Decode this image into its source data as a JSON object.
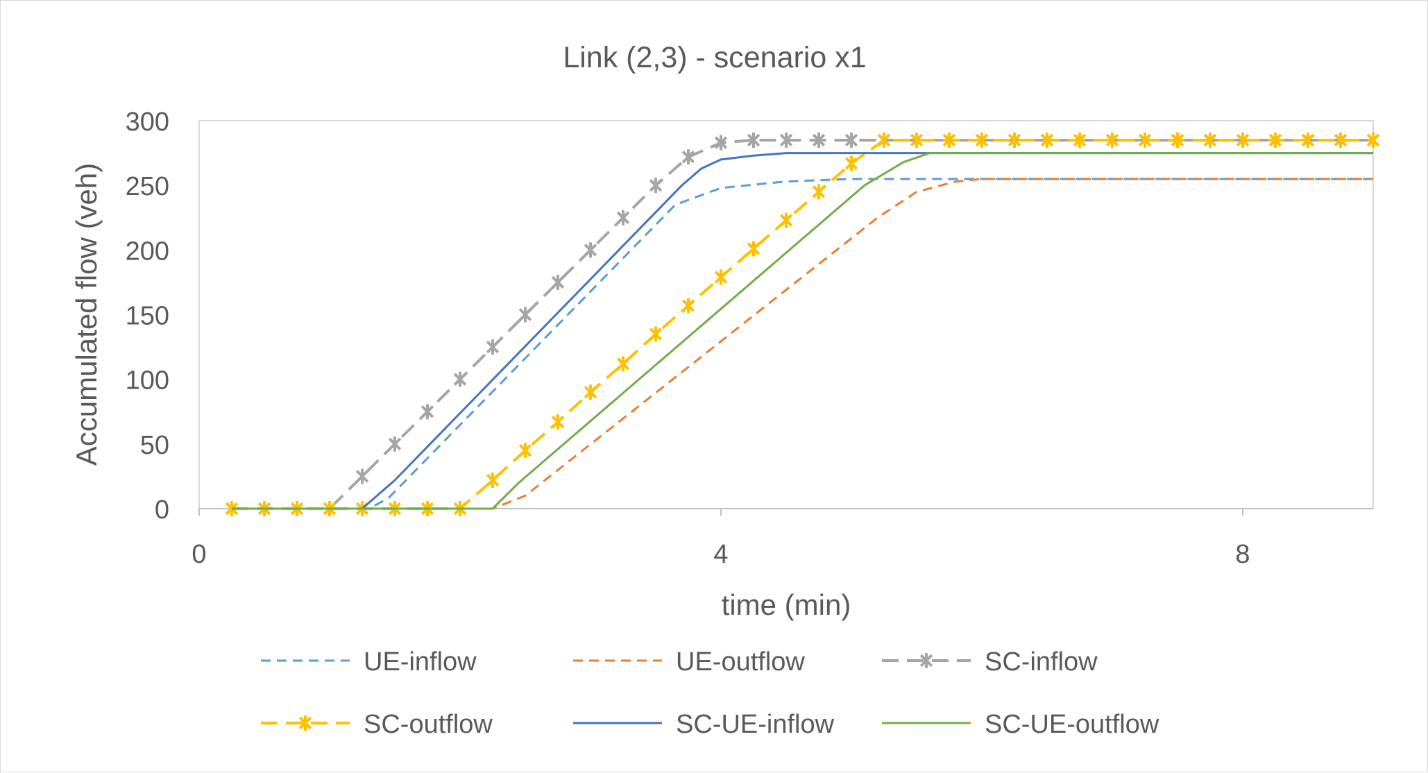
{
  "chart_data": {
    "type": "line",
    "title": "Link (2,3) - scenario x1",
    "xlabel": "time (min)",
    "ylabel": "Accumulated flow (veh)",
    "xlim": [
      0,
      9
    ],
    "ylim": [
      0,
      300
    ],
    "x_ticks": [
      0,
      4,
      8
    ],
    "y_ticks": [
      0,
      50,
      100,
      150,
      200,
      250,
      300
    ],
    "grid": "horizontal-none",
    "legend_position": "bottom",
    "series": [
      {
        "name": "UE-inflow",
        "color": "#5b9bd5",
        "dash": "dashed",
        "marker": "none",
        "x": [
          0.25,
          1.0,
          1.3,
          1.45,
          3.65,
          4.0,
          4.5,
          5.0,
          6.0,
          9.0
        ],
        "y": [
          0,
          0,
          0,
          8,
          235,
          248,
          253,
          255,
          255,
          255
        ]
      },
      {
        "name": "UE-outflow",
        "color": "#ed7d31",
        "dash": "dashed",
        "marker": "none",
        "x": [
          0.25,
          2.0,
          2.25,
          2.5,
          5.2,
          5.5,
          5.8,
          6.0,
          9.0
        ],
        "y": [
          0,
          0,
          0,
          10,
          225,
          245,
          253,
          255,
          255
        ]
      },
      {
        "name": "SC-inflow",
        "color": "#a5a5a5",
        "dash": "dashed",
        "marker": "star",
        "x": [
          0.25,
          0.5,
          0.75,
          1.0,
          1.25,
          1.5,
          1.75,
          2.0,
          2.25,
          2.5,
          2.75,
          3.0,
          3.25,
          3.5,
          3.75,
          4.0,
          4.25,
          4.5,
          4.75,
          5.0,
          5.25,
          5.5,
          5.75,
          6.0,
          6.25,
          6.5,
          6.75,
          7.0,
          7.25,
          7.5,
          7.75,
          8.0,
          8.25,
          8.5,
          8.75,
          9.0
        ],
        "y": [
          0,
          0,
          0,
          0,
          25,
          50,
          75,
          100,
          125,
          150,
          175,
          200,
          225,
          250,
          272,
          283,
          285,
          285,
          285,
          285,
          285,
          285,
          285,
          285,
          285,
          285,
          285,
          285,
          285,
          285,
          285,
          285,
          285,
          285,
          285,
          285
        ]
      },
      {
        "name": "SC-outflow",
        "color": "#ffc000",
        "dash": "dashed",
        "marker": "star",
        "x": [
          0.25,
          0.5,
          0.75,
          1.0,
          1.25,
          1.5,
          1.75,
          2.0,
          2.25,
          2.5,
          2.75,
          3.0,
          3.25,
          3.5,
          3.75,
          4.0,
          4.25,
          4.5,
          4.75,
          5.0,
          5.25,
          5.5,
          5.75,
          6.0,
          6.25,
          6.5,
          6.75,
          7.0,
          7.25,
          7.5,
          7.75,
          8.0,
          8.25,
          8.5,
          8.75,
          9.0
        ],
        "y": [
          0,
          0,
          0,
          0,
          0,
          0,
          0,
          0,
          22,
          45,
          67,
          90,
          112,
          135,
          157,
          179,
          201,
          223,
          245,
          267,
          285,
          285,
          285,
          285,
          285,
          285,
          285,
          285,
          285,
          285,
          285,
          285,
          285,
          285,
          285,
          285
        ]
      },
      {
        "name": "SC-UE-inflow",
        "color": "#4472c4",
        "dash": "solid",
        "marker": "none",
        "x": [
          0.25,
          1.0,
          1.25,
          1.5,
          3.7,
          3.85,
          4.0,
          4.25,
          4.5,
          5.0,
          9.0
        ],
        "y": [
          0,
          0,
          0,
          22,
          250,
          263,
          270,
          273,
          275,
          275,
          275
        ]
      },
      {
        "name": "SC-UE-outflow",
        "color": "#70ad47",
        "dash": "solid",
        "marker": "none",
        "x": [
          0.25,
          2.0,
          2.25,
          2.45,
          5.1,
          5.4,
          5.6,
          6.0,
          9.0
        ],
        "y": [
          0,
          0,
          0,
          20,
          250,
          268,
          275,
          275,
          275
        ]
      }
    ]
  }
}
